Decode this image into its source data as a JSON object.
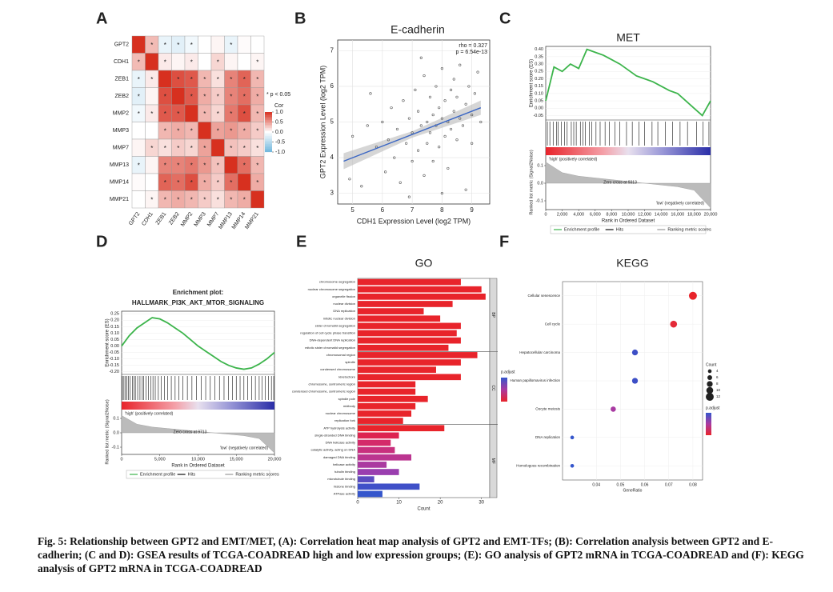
{
  "chart_data": [
    {
      "type": "heatmap",
      "label": "A",
      "categories": [
        "GPT2",
        "CDH1",
        "ZEB1",
        "ZEB2",
        "MMP2",
        "MMP3",
        "MMP7",
        "MMP13",
        "MMP14",
        "MMP21"
      ],
      "values": [
        [
          1,
          0.33,
          -0.15,
          -0.2,
          -0.1,
          0,
          0.05,
          -0.15,
          0.02,
          0
        ],
        [
          0.33,
          1,
          0.1,
          0.05,
          0.1,
          0,
          0.2,
          0.05,
          0,
          0.05
        ],
        [
          -0.15,
          0.1,
          1,
          0.85,
          0.8,
          0.35,
          0.15,
          0.6,
          0.75,
          0.35
        ],
        [
          -0.2,
          0.05,
          0.85,
          1,
          0.8,
          0.4,
          0.25,
          0.6,
          0.7,
          0.4
        ],
        [
          -0.1,
          0.1,
          0.8,
          0.8,
          1,
          0.35,
          0.2,
          0.65,
          0.85,
          0.35
        ],
        [
          0,
          0,
          0.35,
          0.4,
          0.35,
          1,
          0.45,
          0.5,
          0.4,
          0.25
        ],
        [
          0.05,
          0.2,
          0.15,
          0.25,
          0.2,
          0.45,
          1,
          0.3,
          0.25,
          0.15
        ],
        [
          -0.15,
          0.05,
          0.6,
          0.6,
          0.65,
          0.5,
          0.3,
          1,
          0.7,
          0.35
        ],
        [
          0.02,
          0,
          0.75,
          0.7,
          0.85,
          0.4,
          0.25,
          0.7,
          1,
          0.4
        ],
        [
          0,
          0.05,
          0.35,
          0.4,
          0.35,
          0.25,
          0.15,
          0.35,
          0.4,
          1
        ]
      ],
      "significant": [
        [
          0,
          1,
          1,
          1,
          1,
          0,
          0,
          1,
          0,
          0
        ],
        [
          1,
          0,
          1,
          0,
          1,
          0,
          1,
          0,
          0,
          1
        ],
        [
          1,
          1,
          0,
          1,
          1,
          1,
          1,
          1,
          1,
          1
        ],
        [
          1,
          0,
          1,
          0,
          1,
          1,
          1,
          1,
          1,
          1
        ],
        [
          1,
          1,
          1,
          1,
          0,
          1,
          1,
          1,
          1,
          1
        ],
        [
          0,
          0,
          1,
          1,
          1,
          0,
          1,
          1,
          1,
          1
        ],
        [
          0,
          1,
          1,
          1,
          1,
          1,
          0,
          1,
          1,
          1
        ],
        [
          1,
          0,
          1,
          1,
          1,
          1,
          1,
          0,
          1,
          1
        ],
        [
          0,
          0,
          1,
          1,
          1,
          1,
          1,
          1,
          0,
          1
        ],
        [
          0,
          1,
          1,
          1,
          1,
          1,
          1,
          1,
          1,
          0
        ]
      ],
      "sig_mark": "*",
      "sig_label": "* p < 0.05",
      "legend_title": "Cor",
      "clim": [
        -1,
        1
      ],
      "cticks": [
        {
          "value": 1,
          "label": "1.0"
        },
        0.5,
        {
          "value": 0,
          "label": "0.0"
        },
        -0.5,
        {
          "value": -1,
          "label": "-1.0"
        }
      ],
      "colors": {
        "low": "#6fb6dc",
        "mid": "#ffffff",
        "high": "#d7301f"
      }
    },
    {
      "type": "scatter",
      "label": "B",
      "title": "E-cadherin",
      "xlabel": "CDH1 Expression Level (log2 TPM)",
      "ylabel": "GPT2 Expression Level (log2 TPM)",
      "annotations": [
        "rho = 0.327",
        "p = 6.54e-13"
      ],
      "x": [
        5.0,
        5.3,
        5.5,
        5.8,
        6.0,
        6.1,
        6.2,
        6.3,
        6.4,
        6.5,
        6.6,
        6.7,
        6.8,
        6.9,
        7.0,
        7.0,
        7.1,
        7.2,
        7.2,
        7.3,
        7.4,
        7.4,
        7.5,
        7.5,
        7.6,
        7.6,
        7.7,
        7.7,
        7.8,
        7.8,
        7.9,
        7.9,
        8.0,
        8.0,
        8.1,
        8.1,
        8.2,
        8.2,
        8.3,
        8.3,
        8.4,
        8.4,
        8.5,
        8.5,
        8.6,
        8.6,
        8.7,
        8.8,
        8.8,
        8.9,
        9.0,
        9.0,
        9.1,
        9.2,
        9.3,
        5.6,
        6.9,
        7.3,
        4.9,
        8.0
      ],
      "values": [
        4.6,
        3.2,
        4.9,
        4.3,
        5.0,
        3.6,
        4.5,
        5.4,
        4.0,
        4.8,
        3.3,
        5.6,
        4.4,
        5.1,
        4.7,
        3.9,
        5.9,
        4.2,
        5.3,
        4.9,
        6.3,
        3.5,
        5.0,
        4.4,
        5.7,
        4.7,
        5.2,
        3.9,
        6.0,
        4.9,
        5.4,
        4.3,
        5.1,
        6.5,
        4.6,
        5.6,
        5.0,
        3.7,
        5.9,
        4.8,
        5.3,
        6.2,
        4.5,
        5.7,
        5.1,
        6.6,
        4.9,
        5.5,
        3.1,
        6.0,
        5.2,
        4.4,
        5.8,
        6.4,
        5.0,
        5.8,
        2.9,
        6.8,
        3.4,
        3.0
      ],
      "fit_x": [
        4.7,
        9.3
      ],
      "fit_y": [
        3.9,
        5.4
      ],
      "color": "#555555",
      "fit_color": "#3a66c4",
      "xlim": [
        4.5,
        9.6
      ],
      "xticks": [
        5,
        6,
        7,
        8,
        9
      ],
      "ylim": [
        2.7,
        7.3
      ],
      "yticks": [
        3,
        4,
        5,
        6,
        7
      ],
      "grid": true
    },
    {
      "type": "gsea",
      "label": "C",
      "title": [
        "MET"
      ],
      "ylabel": "Enrichment score (ES)",
      "metric_label": "Ranked list metric (Signal2Noise)",
      "xlabel": "Rank in Ordered Dataset",
      "annotations": [
        "'high' (positively correlated)",
        "Zero cross at 9313",
        "'low' (negatively correlated)"
      ],
      "legend": [
        "Enrichment profile",
        "Hits",
        "Ranking metric scores"
      ],
      "x": [
        0,
        1000,
        2000,
        3000,
        4000,
        5000,
        6000,
        7000,
        8000,
        9000,
        10000,
        11000,
        12000,
        13000,
        14000,
        15000,
        16000,
        17000,
        18000,
        19000,
        20000
      ],
      "values": [
        0.05,
        0.28,
        0.25,
        0.3,
        0.27,
        0.4,
        0.38,
        0.36,
        0.33,
        0.3,
        0.26,
        0.22,
        0.2,
        0.18,
        0.15,
        0.12,
        0.1,
        0.05,
        0.0,
        -0.05,
        0.05
      ],
      "hits": [
        200,
        500,
        900,
        1300,
        1500,
        1900,
        2300,
        2600,
        3100,
        3400,
        3700,
        4200,
        4500,
        4800,
        5300,
        5600,
        6100,
        6600,
        7200,
        7700,
        8400,
        9000,
        9800,
        10500,
        11300,
        12000,
        12900,
        13600,
        14500,
        15400,
        16300,
        17200,
        18300,
        19100,
        19800
      ],
      "metric_x": [
        0,
        2000,
        4000,
        6000,
        8000,
        10000,
        12000,
        14000,
        16000,
        18000,
        20000
      ],
      "metric": [
        0.12,
        0.06,
        0.04,
        0.03,
        0.02,
        0.01,
        0,
        -0.01,
        -0.02,
        -0.04,
        -0.14
      ],
      "color": "#3cb44b",
      "xlim": [
        0,
        20000
      ],
      "xticks": [
        0,
        {
          "value": 2000,
          "label": "2,000"
        },
        {
          "value": 4000,
          "label": "4,000"
        },
        {
          "value": 6000,
          "label": "6,000"
        },
        {
          "value": 8000,
          "label": "8,000"
        },
        {
          "value": 10000,
          "label": "10,000"
        },
        {
          "value": 12000,
          "label": "12,000"
        },
        {
          "value": 14000,
          "label": "14,000"
        },
        {
          "value": 16000,
          "label": "16,000"
        },
        {
          "value": 18000,
          "label": "18,000"
        },
        {
          "value": 20000,
          "label": "20,000"
        }
      ],
      "ylim": [
        -0.08,
        0.42
      ],
      "yticks": [
        {
          "value": 0.4,
          "label": "0.40"
        },
        0.35,
        {
          "value": 0.3,
          "label": "0.30"
        },
        0.25,
        {
          "value": 0.2,
          "label": "0.20"
        },
        0.15,
        {
          "value": 0.1,
          "label": "0.10"
        },
        0.05,
        {
          "value": 0,
          "label": "0.00"
        },
        -0.05
      ],
      "mlim": [
        -0.15,
        0.15
      ],
      "mticks": [
        0.1,
        {
          "value": 0,
          "label": "0.0"
        },
        -0.1
      ]
    },
    {
      "type": "gsea",
      "label": "D",
      "title": [
        "Enrichment plot:",
        "HALLMARK_PI3K_AKT_MTOR_SIGNALING"
      ],
      "ylabel": "Enrichment score (ES)",
      "metric_label": "Ranked list metric (Signal2Noise)",
      "xlabel": "Rank in Ordered Dataset",
      "annotations": [
        "'high' (positively correlated)",
        "Zero cross at 9713",
        "'low' (negatively correlated)"
      ],
      "legend": [
        "Enrichment profile",
        "Hits",
        "Ranking metric scores"
      ],
      "x": [
        0,
        1000,
        2000,
        3000,
        4000,
        5000,
        6000,
        7000,
        8000,
        9000,
        10000,
        11000,
        12000,
        13000,
        14000,
        15000,
        16000,
        17000,
        18000,
        19000,
        20000
      ],
      "values": [
        0,
        0.08,
        0.14,
        0.18,
        0.22,
        0.21,
        0.18,
        0.14,
        0.1,
        0.05,
        0.0,
        -0.04,
        -0.08,
        -0.12,
        -0.15,
        -0.17,
        -0.18,
        -0.17,
        -0.14,
        -0.1,
        -0.05
      ],
      "hits": [
        100,
        300,
        500,
        700,
        900,
        1100,
        1400,
        1600,
        1800,
        2100,
        2400,
        2700,
        2900,
        3200,
        3500,
        3800,
        4100,
        4400,
        4800,
        5200,
        5600,
        6000,
        6500,
        7000,
        7500,
        8000,
        8600,
        9200,
        9800,
        10400,
        11000,
        11600,
        12200,
        12800,
        13400,
        14000,
        14500,
        15000,
        15500,
        16000,
        16500,
        17000,
        17500,
        18000,
        18400,
        18800,
        19200,
        19600,
        19900
      ],
      "metric_x": [
        0,
        2000,
        4000,
        6000,
        8000,
        10000,
        12000,
        14000,
        16000,
        18000,
        20000
      ],
      "metric": [
        0.12,
        0.06,
        0.04,
        0.03,
        0.02,
        0.01,
        0,
        -0.01,
        -0.02,
        -0.04,
        -0.14
      ],
      "color": "#3cb44b",
      "xlim": [
        0,
        20000
      ],
      "xticks": [
        0,
        {
          "value": 5000,
          "label": "5,000"
        },
        {
          "value": 10000,
          "label": "10,000"
        },
        {
          "value": 15000,
          "label": "15,000"
        },
        {
          "value": 20000,
          "label": "20,000"
        }
      ],
      "ylim": [
        -0.22,
        0.27
      ],
      "yticks": [
        0.25,
        {
          "value": 0.2,
          "label": "0.20"
        },
        0.15,
        {
          "value": 0.1,
          "label": "0.10"
        },
        0.05,
        {
          "value": 0,
          "label": "0.00"
        },
        -0.05,
        {
          "value": -0.1,
          "label": "-0.10"
        },
        -0.15,
        {
          "value": -0.2,
          "label": "-0.20"
        }
      ],
      "mlim": [
        -0.15,
        0.15
      ],
      "mticks": [
        0.1,
        {
          "value": 0,
          "label": "0.0"
        },
        -0.1
      ]
    },
    {
      "type": "barh",
      "label": "E",
      "title": "GO",
      "xlabel": "Count",
      "legend_title": "p.adjust",
      "groups": [
        {
          "name": "BP",
          "categories": [
            "chromosome segregation",
            "nuclear chromosome segregation",
            "organelle fission",
            "nuclear division",
            "DNA replication",
            "mitotic nuclear division",
            "sister chromatid segregation",
            "regulation of cell cycle phase transition",
            "DNA-dependent DNA replication",
            "mitotic sister chromatid segregation"
          ],
          "values": [
            25,
            30,
            31,
            23,
            16,
            20,
            25,
            24,
            25,
            22
          ],
          "colors": [
            "#e8242b",
            "#e8242b",
            "#e8242b",
            "#e8242b",
            "#e8242b",
            "#e8242b",
            "#e8242b",
            "#e8242b",
            "#e8242b",
            "#e8242b"
          ]
        },
        {
          "name": "CC",
          "categories": [
            "chromosomal region",
            "spindle",
            "condensed chromosome",
            "kinetochore",
            "chromosome, centromeric region",
            "condensed chromosome, centromeric region",
            "spindle pole",
            "midbody",
            "nuclear chromosome",
            "replication fork"
          ],
          "values": [
            29,
            25,
            19,
            25,
            14,
            14,
            17,
            14,
            13,
            11
          ],
          "colors": [
            "#e8242b",
            "#e8242b",
            "#e8242b",
            "#e8242b",
            "#e8242b",
            "#e8242b",
            "#e8242b",
            "#e8242b",
            "#e8242b",
            "#e8242b"
          ]
        },
        {
          "name": "MF",
          "categories": [
            "ATP hydrolysis activity",
            "single-stranded DNA binding",
            "DNA helicase activity",
            "catalytic activity, acting on DNA",
            "damaged DNA binding",
            "helicase activity",
            "tubulin binding",
            "microtubule binding",
            "histone binding",
            "ATPase activity"
          ],
          "values": [
            21,
            10,
            8,
            9,
            13,
            7,
            10,
            4,
            15,
            6
          ],
          "colors": [
            "#e8242b",
            "#dd2450",
            "#d42a6a",
            "#c8307e",
            "#bb3590",
            "#aa3aa0",
            "#9a3eaf",
            "#5a4cc0",
            "#3f50c8",
            "#3556cc"
          ]
        }
      ],
      "xlim": [
        0,
        32
      ],
      "xticks": [
        0,
        10,
        20,
        30
      ]
    },
    {
      "type": "dot",
      "label": "F",
      "title": "KEGG",
      "xlabel": "GeneRatio",
      "size_title": "Count",
      "legend_title": "p.adjust",
      "categories": [
        "Cellular senescence",
        "Cell cycle",
        "Hepatocellular carcinoma",
        "Human papillomavirus infection",
        "Oocyte meiosis",
        "DNA replication",
        "Homologous recombination"
      ],
      "values": [
        0.08,
        0.072,
        0.056,
        0.056,
        0.047,
        0.03,
        0.03
      ],
      "sizes": [
        12,
        10,
        8,
        8,
        7,
        4,
        4
      ],
      "colors": [
        "#e8242b",
        "#e42a38",
        "#3d4fc6",
        "#3d4fc6",
        "#a83aa2",
        "#3556cc",
        "#3556cc"
      ],
      "size_ticks": [
        4,
        6,
        8,
        10,
        12
      ],
      "xlim": [
        0.026,
        0.084
      ],
      "xticks": [
        0.04,
        0.05,
        0.06,
        0.07,
        0.08
      ]
    }
  ],
  "caption": "Fig. 5: Relationship between GPT2 and EMT/MET, (A): Correlation heat map analysis of GPT2 and EMT-TFs; (B): Correlation analysis between GPT2 and E-cadherin; (C and D): GSEA results of TCGA-COADREAD high and low expression groups; (E): GO analysis of GPT2 mRNA in TCGA-COADREAD and (F): KEGG analysis of GPT2 mRNA in TCGA-COADREAD"
}
